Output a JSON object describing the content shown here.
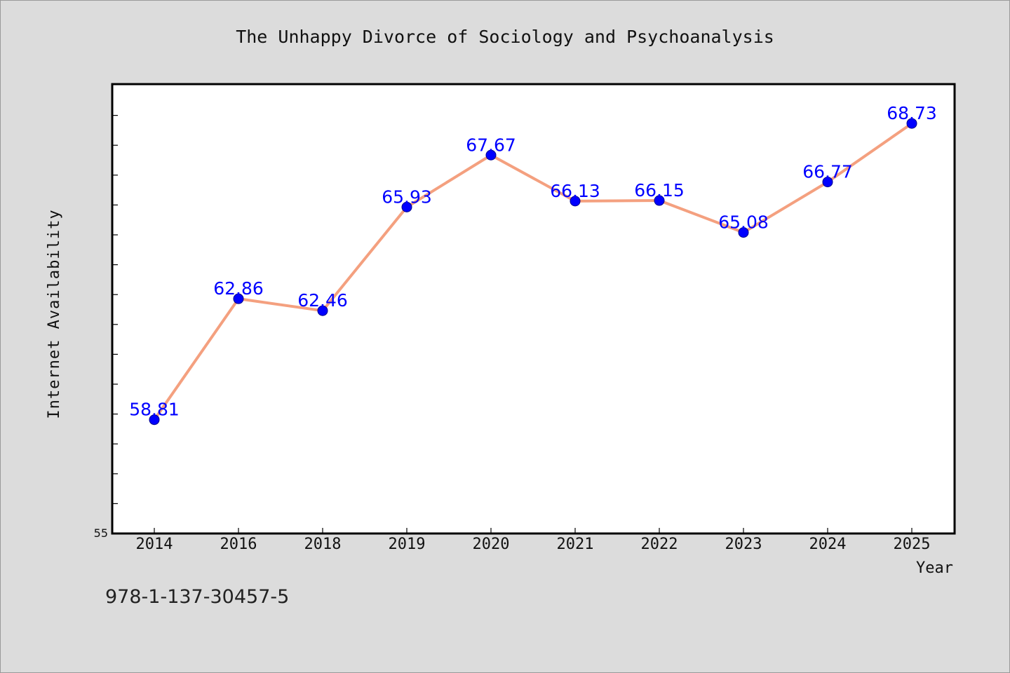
{
  "chart_data": {
    "type": "line",
    "title": "The Unhappy Divorce of Sociology and Psychoanalysis",
    "xlabel": "Year",
    "ylabel": "Internet Availability",
    "categories": [
      "2014",
      "2016",
      "2018",
      "2019",
      "2020",
      "2021",
      "2022",
      "2023",
      "2024",
      "2025"
    ],
    "series": [
      {
        "values": [
          58.81,
          62.86,
          62.46,
          65.93,
          67.67,
          66.13,
          66.15,
          65.08,
          66.77,
          68.73
        ],
        "labels": [
          "58.81",
          "62.86",
          "62.46",
          "65.93",
          "67.67",
          "66.13",
          "66.15",
          "65.08",
          "66.77",
          "68.73"
        ]
      }
    ],
    "ylim": [
      55,
      70
    ],
    "y_tick_labels": [
      "55"
    ],
    "y_minor_step": 1,
    "grid": false,
    "legend": "none",
    "colors": {
      "line": "#f4a07f",
      "marker": "#0000ff",
      "label": "#0000ff",
      "plot_background": "#ffffff",
      "figure_background": "#dcdcdc"
    }
  },
  "footer": {
    "isbn": "978-1-137-30457-5"
  }
}
